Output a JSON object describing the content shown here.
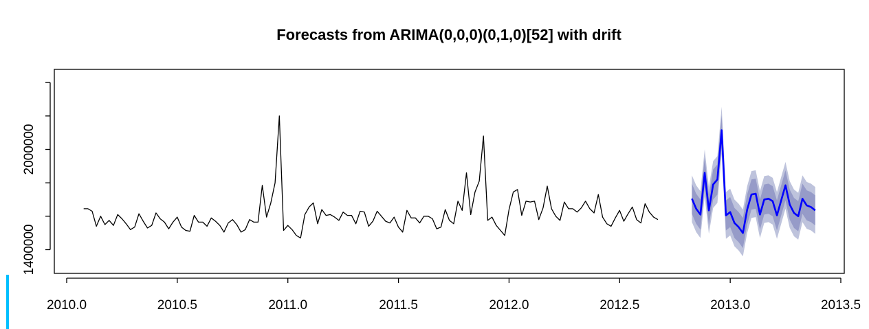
{
  "chart_data": {
    "type": "line",
    "title": "Forecasts from ARIMA(0,0,0)(0,1,0)[52] with drift",
    "xlabel": "",
    "ylabel": "",
    "xlim": [
      2010.0,
      2013.5
    ],
    "ylim": [
      1250000,
      2450000
    ],
    "x_ticks": [
      2010.0,
      2010.5,
      2011.0,
      2011.5,
      2012.0,
      2012.5,
      2013.0,
      2013.5
    ],
    "x_tick_labels": [
      "2010.0",
      "2010.5",
      "2011.0",
      "2011.5",
      "2012.0",
      "2012.5",
      "2013.0",
      "2013.5"
    ],
    "y_ticks": [
      1400000,
      1600000,
      1800000,
      2000000,
      2200000,
      2400000
    ],
    "y_tick_labels": [
      "1400000",
      "",
      "",
      "2000000",
      "",
      ""
    ],
    "grid": false,
    "series": [
      {
        "role": "observed",
        "color": "#000000",
        "x_start": 2010.0767,
        "x_step": 0.019231,
        "values": [
          1645000,
          1645000,
          1630000,
          1540000,
          1600000,
          1550000,
          1575000,
          1545000,
          1610000,
          1585000,
          1555000,
          1520000,
          1535000,
          1615000,
          1570000,
          1530000,
          1545000,
          1620000,
          1585000,
          1565000,
          1525000,
          1565000,
          1595000,
          1535000,
          1515000,
          1510000,
          1605000,
          1565000,
          1565000,
          1540000,
          1590000,
          1570000,
          1545000,
          1505000,
          1560000,
          1580000,
          1550000,
          1505000,
          1520000,
          1580000,
          1565000,
          1565000,
          1785000,
          1595000,
          1680000,
          1800000,
          2200000,
          1515000,
          1545000,
          1520000,
          1485000,
          1470000,
          1610000,
          1655000,
          1680000,
          1555000,
          1640000,
          1605000,
          1610000,
          1595000,
          1575000,
          1625000,
          1605000,
          1605000,
          1555000,
          1630000,
          1625000,
          1540000,
          1570000,
          1630000,
          1600000,
          1570000,
          1560000,
          1595000,
          1535000,
          1505000,
          1635000,
          1590000,
          1590000,
          1560000,
          1600000,
          1600000,
          1585000,
          1525000,
          1535000,
          1640000,
          1575000,
          1555000,
          1690000,
          1635000,
          1860000,
          1610000,
          1745000,
          1810000,
          2080000,
          1575000,
          1595000,
          1545000,
          1515000,
          1485000,
          1640000,
          1745000,
          1760000,
          1605000,
          1690000,
          1685000,
          1690000,
          1580000,
          1650000,
          1780000,
          1645000,
          1600000,
          1575000,
          1685000,
          1645000,
          1645000,
          1625000,
          1650000,
          1690000,
          1645000,
          1620000,
          1730000,
          1595000,
          1555000,
          1540000,
          1590000,
          1635000,
          1570000,
          1615000,
          1655000,
          1580000,
          1560000,
          1675000,
          1625000,
          1595000,
          1580000
        ]
      },
      {
        "role": "point-forecast",
        "color": "#0000ff",
        "x_start": 2012.8267,
        "x_step": 0.019231,
        "values": [
          1705000,
          1645000,
          1610000,
          1860000,
          1635000,
          1790000,
          1820000,
          2115000,
          1605000,
          1625000,
          1560000,
          1535000,
          1500000,
          1640000,
          1730000,
          1735000,
          1610000,
          1700000,
          1705000,
          1690000,
          1605000,
          1695000,
          1785000,
          1670000,
          1620000,
          1600000,
          1705000,
          1665000,
          1655000,
          1635000
        ]
      }
    ],
    "prediction_bands": [
      {
        "level": "95%",
        "color": "#bec3dc",
        "half_width": 140000
      },
      {
        "level": "80%",
        "color": "#969bc8",
        "half_width": 90000
      }
    ]
  }
}
